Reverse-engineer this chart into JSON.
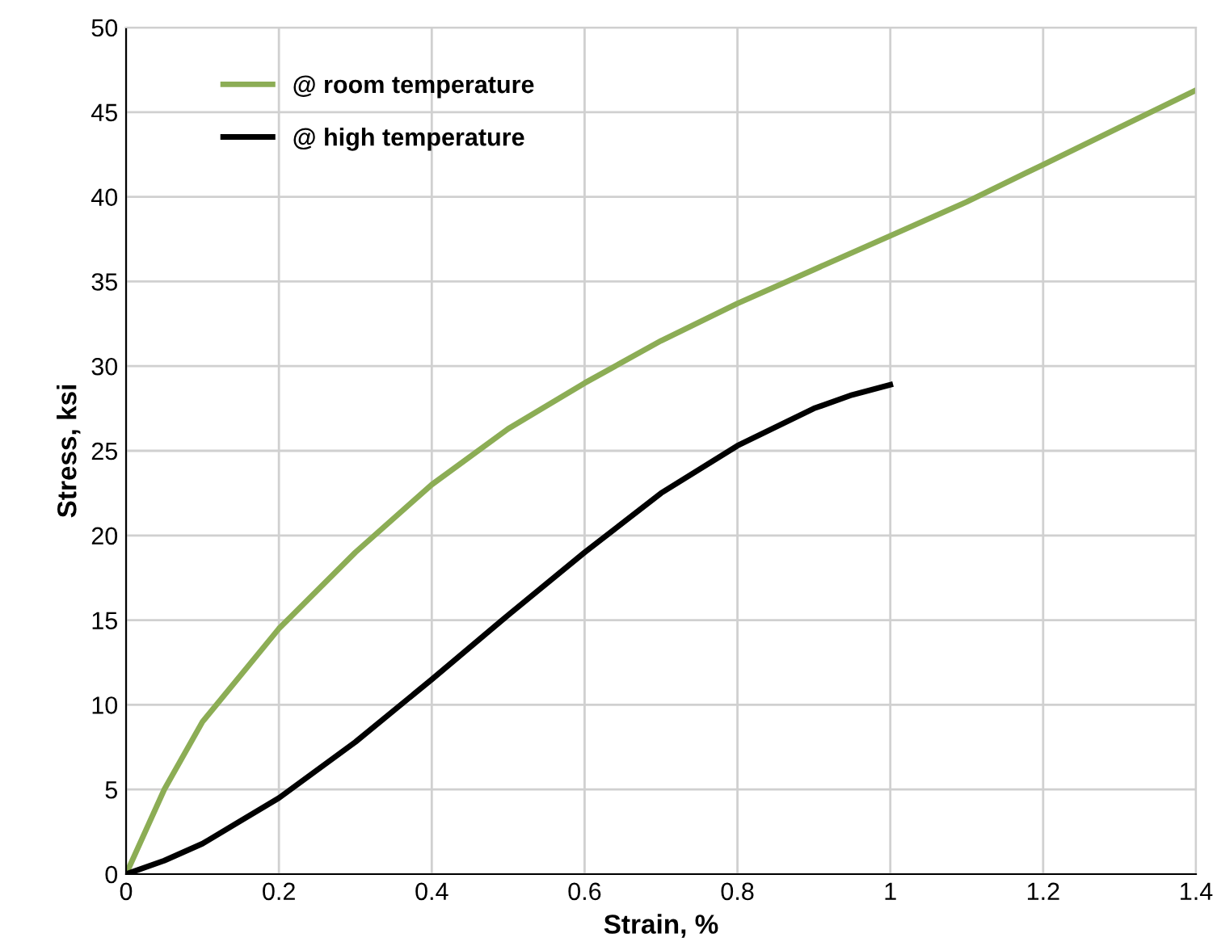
{
  "chart_data": {
    "type": "line",
    "xlabel": "Strain, %",
    "ylabel": "Stress, ksi",
    "series": [
      {
        "name": "@ room temperature",
        "color": "#8cad55",
        "x": [
          0,
          0.05,
          0.1,
          0.2,
          0.3,
          0.4,
          0.5,
          0.6,
          0.7,
          0.8,
          0.9,
          1.0,
          1.1,
          1.2,
          1.3,
          1.4
        ],
        "values": [
          0,
          5,
          9,
          14.5,
          19,
          23,
          26.3,
          29,
          31.5,
          33.7,
          35.7,
          37.7,
          39.7,
          41.9,
          44.1,
          46.3
        ]
      },
      {
        "name": "@ high temperature",
        "color": "#000000",
        "x": [
          0,
          0.05,
          0.1,
          0.2,
          0.3,
          0.4,
          0.5,
          0.6,
          0.7,
          0.8,
          0.9,
          0.95,
          1.0
        ],
        "values": [
          0,
          0.8,
          1.8,
          4.5,
          7.8,
          11.5,
          15.3,
          19,
          22.5,
          25.3,
          27.5,
          28.3,
          28.9
        ]
      }
    ],
    "xlim": [
      0,
      1.4
    ],
    "xticks": [
      0,
      0.2,
      0.4,
      0.6,
      0.8,
      1,
      1.2,
      1.4
    ],
    "ylim": [
      0,
      50
    ],
    "yticks": [
      0,
      5,
      10,
      15,
      20,
      25,
      30,
      35,
      40,
      45,
      50
    ],
    "grid": true,
    "legend": "top left",
    "marker": "none",
    "line_style": "solid"
  }
}
